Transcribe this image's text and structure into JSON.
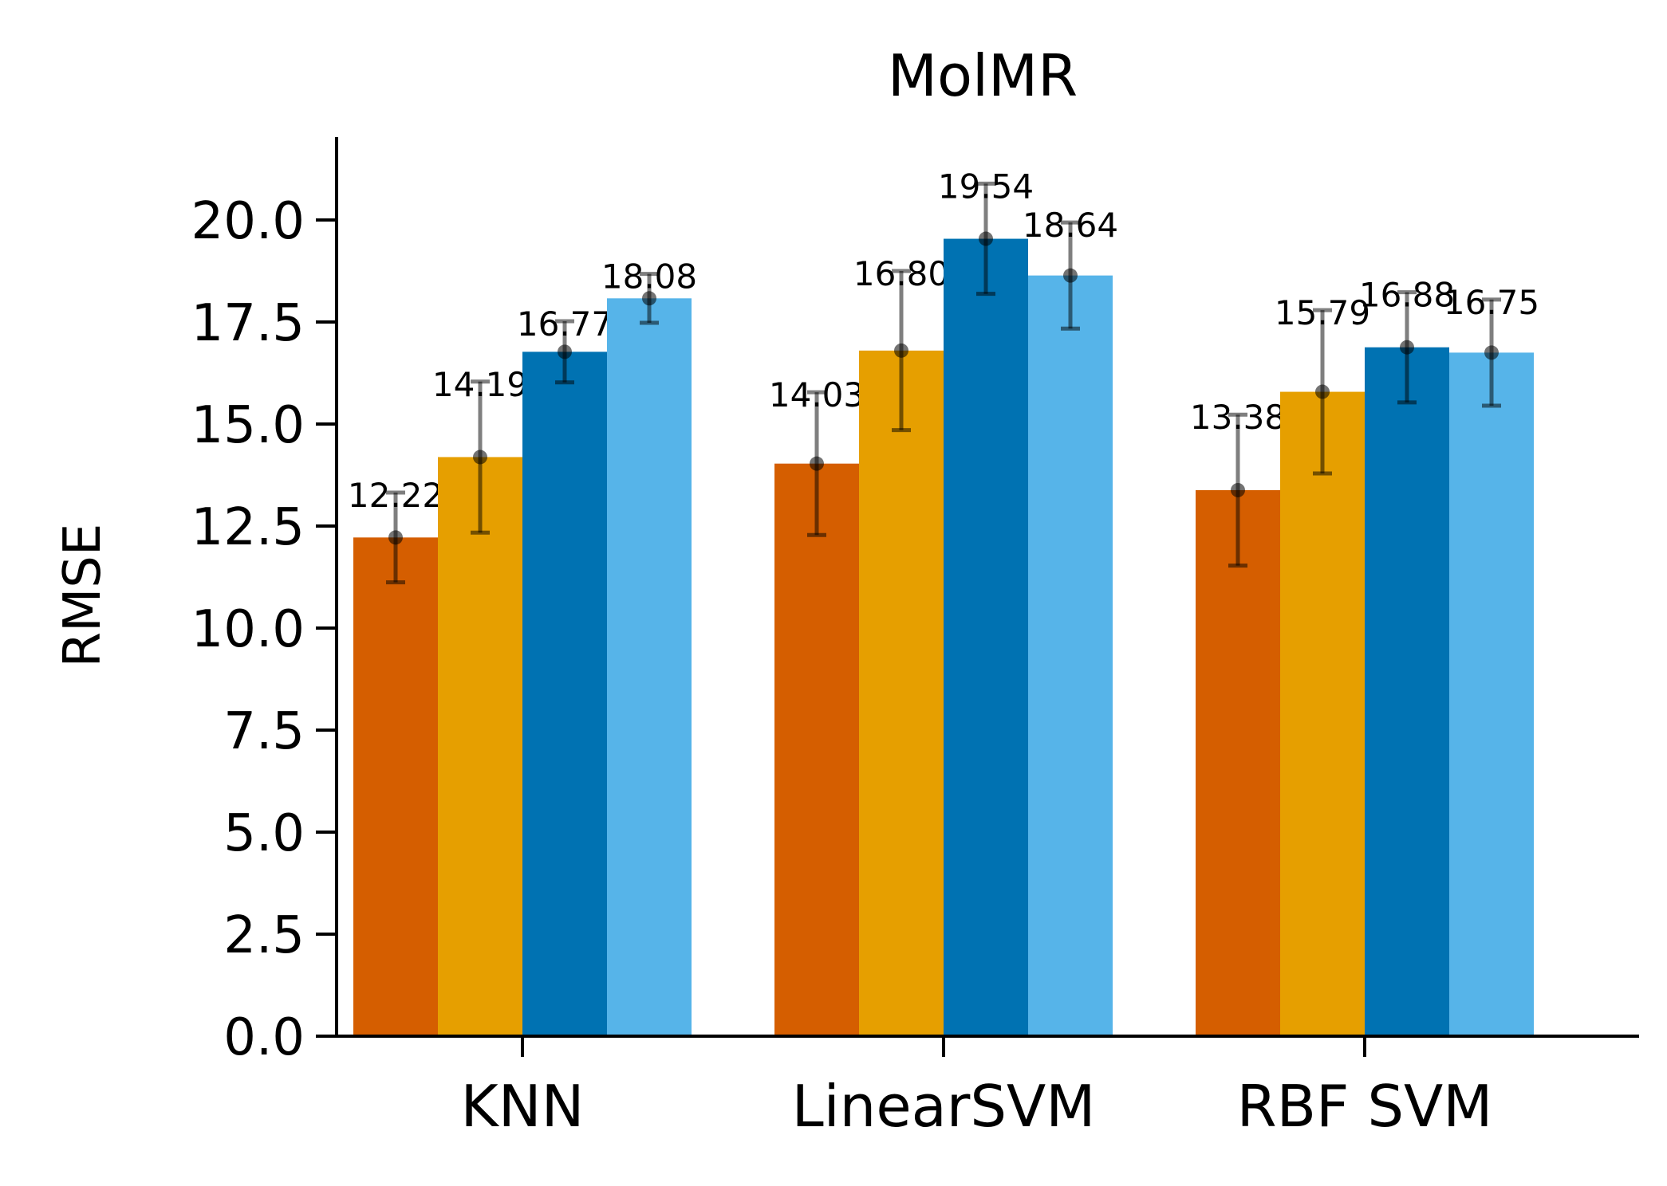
{
  "chart_data": {
    "type": "bar",
    "title": "MolMR",
    "xlabel": "",
    "ylabel": "RMSE",
    "ylim": [
      0,
      22
    ],
    "yticks": [
      0.0,
      2.5,
      5.0,
      7.5,
      10.0,
      12.5,
      15.0,
      17.5,
      20.0
    ],
    "ytick_labels": [
      "0.0",
      "2.5",
      "5.0",
      "7.5",
      "10.0",
      "12.5",
      "15.0",
      "17.5",
      "20.0"
    ],
    "categories": [
      "KNN",
      "LinearSVM",
      "RBF SVM"
    ],
    "grid": false,
    "legend": "none",
    "series": [
      {
        "color": "#d55e00",
        "values": [
          12.22,
          14.03,
          13.38
        ],
        "labels": [
          "12.22",
          "14.03",
          "13.38"
        ],
        "err": [
          1.1,
          1.75,
          1.85
        ]
      },
      {
        "color": "#e69f00",
        "values": [
          14.19,
          16.8,
          15.79
        ],
        "labels": [
          "14.19",
          "16.80",
          "15.79"
        ],
        "err": [
          1.85,
          1.95,
          2.0
        ]
      },
      {
        "color": "#0072b2",
        "values": [
          16.77,
          19.54,
          16.88
        ],
        "labels": [
          "16.77",
          "19.54",
          "16.88"
        ],
        "err": [
          0.75,
          1.35,
          1.35
        ]
      },
      {
        "color": "#56b4e9",
        "values": [
          18.08,
          18.64,
          16.75
        ],
        "labels": [
          "18.08",
          "18.64",
          "16.75"
        ],
        "err": [
          0.6,
          1.3,
          1.3
        ]
      }
    ]
  }
}
